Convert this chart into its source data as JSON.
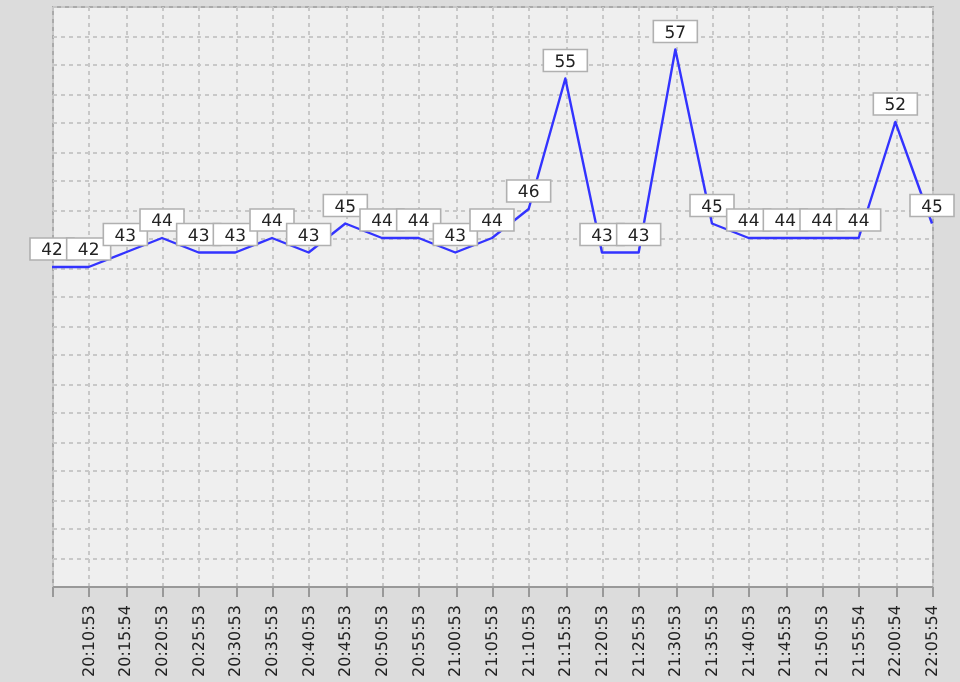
{
  "chart_data": {
    "type": "line",
    "categories": [
      null,
      "20:10:53",
      "20:15:54",
      "20:20:53",
      "20:25:53",
      "20:30:53",
      "20:35:53",
      "20:40:53",
      "20:45:53",
      "20:50:53",
      "20:55:53",
      "21:00:53",
      "21:05:53",
      "21:10:53",
      "21:15:53",
      "21:20:53",
      "21:25:53",
      "21:30:53",
      "21:35:53",
      "21:40:53",
      "21:45:53",
      "21:50:53",
      "21:55:54",
      "22:00:54",
      "22:05:54"
    ],
    "series": [
      {
        "color": "#3333ff",
        "values": [
          42,
          42,
          43,
          44,
          43,
          43,
          44,
          43,
          45,
          44,
          44,
          43,
          44,
          46,
          55,
          43,
          43,
          57,
          45,
          44,
          44,
          44,
          44,
          52,
          45
        ]
      }
    ],
    "ylim": [
      20,
      60
    ],
    "grid": true,
    "tick_labels": "x",
    "data_labels": true,
    "marker": "none",
    "line_style": "solid",
    "legend": false
  }
}
